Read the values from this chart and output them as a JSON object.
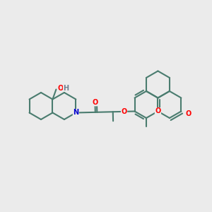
{
  "background_color": "#ebebeb",
  "bond_color": "#4a7c6f",
  "bond_width": 1.5,
  "atom_colors": {
    "O": "#ff0000",
    "N": "#0000cd",
    "H": "#708090",
    "C": "#4a7c6f"
  },
  "figsize": [
    3.0,
    3.0
  ],
  "dpi": 100
}
